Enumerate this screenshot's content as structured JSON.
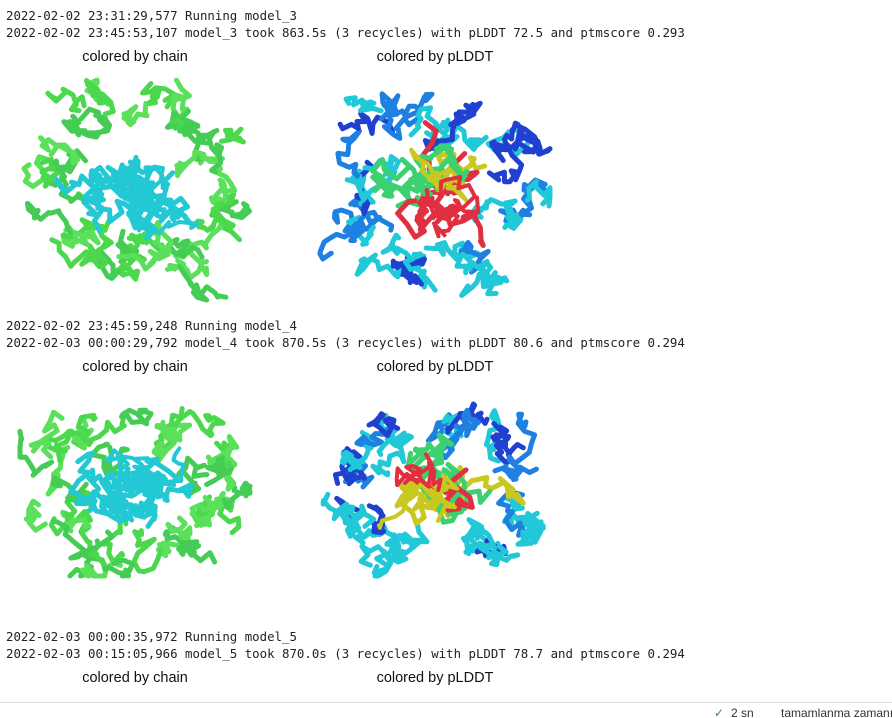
{
  "blocks": [
    {
      "lines": [
        "2022-02-02 23:31:29,577 Running model_3",
        "2022-02-02 23:45:53,107 model_3 took 863.5s (3 recycles) with pLDDT 72.5 and ptmscore 0.293"
      ],
      "captions": [
        "colored by chain",
        "colored by pLDDT"
      ]
    },
    {
      "lines": [
        "2022-02-02 23:45:59,248 Running model_4",
        "2022-02-03 00:00:29,792 model_4 took 870.5s (3 recycles) with pLDDT 80.6 and ptmscore 0.294"
      ],
      "captions": [
        "colored by chain",
        "colored by pLDDT"
      ]
    },
    {
      "lines": [
        "2022-02-03 00:00:35,972 Running model_5",
        "2022-02-03 00:15:05,966 model_5 took 870.0s (3 recycles) with pLDDT 78.7 and ptmscore 0.294"
      ],
      "captions": [
        "colored by chain",
        "colored by pLDDT"
      ]
    }
  ],
  "status": {
    "check": "✓",
    "duration": "2 sn",
    "label": "tamamlanma zamanı"
  }
}
